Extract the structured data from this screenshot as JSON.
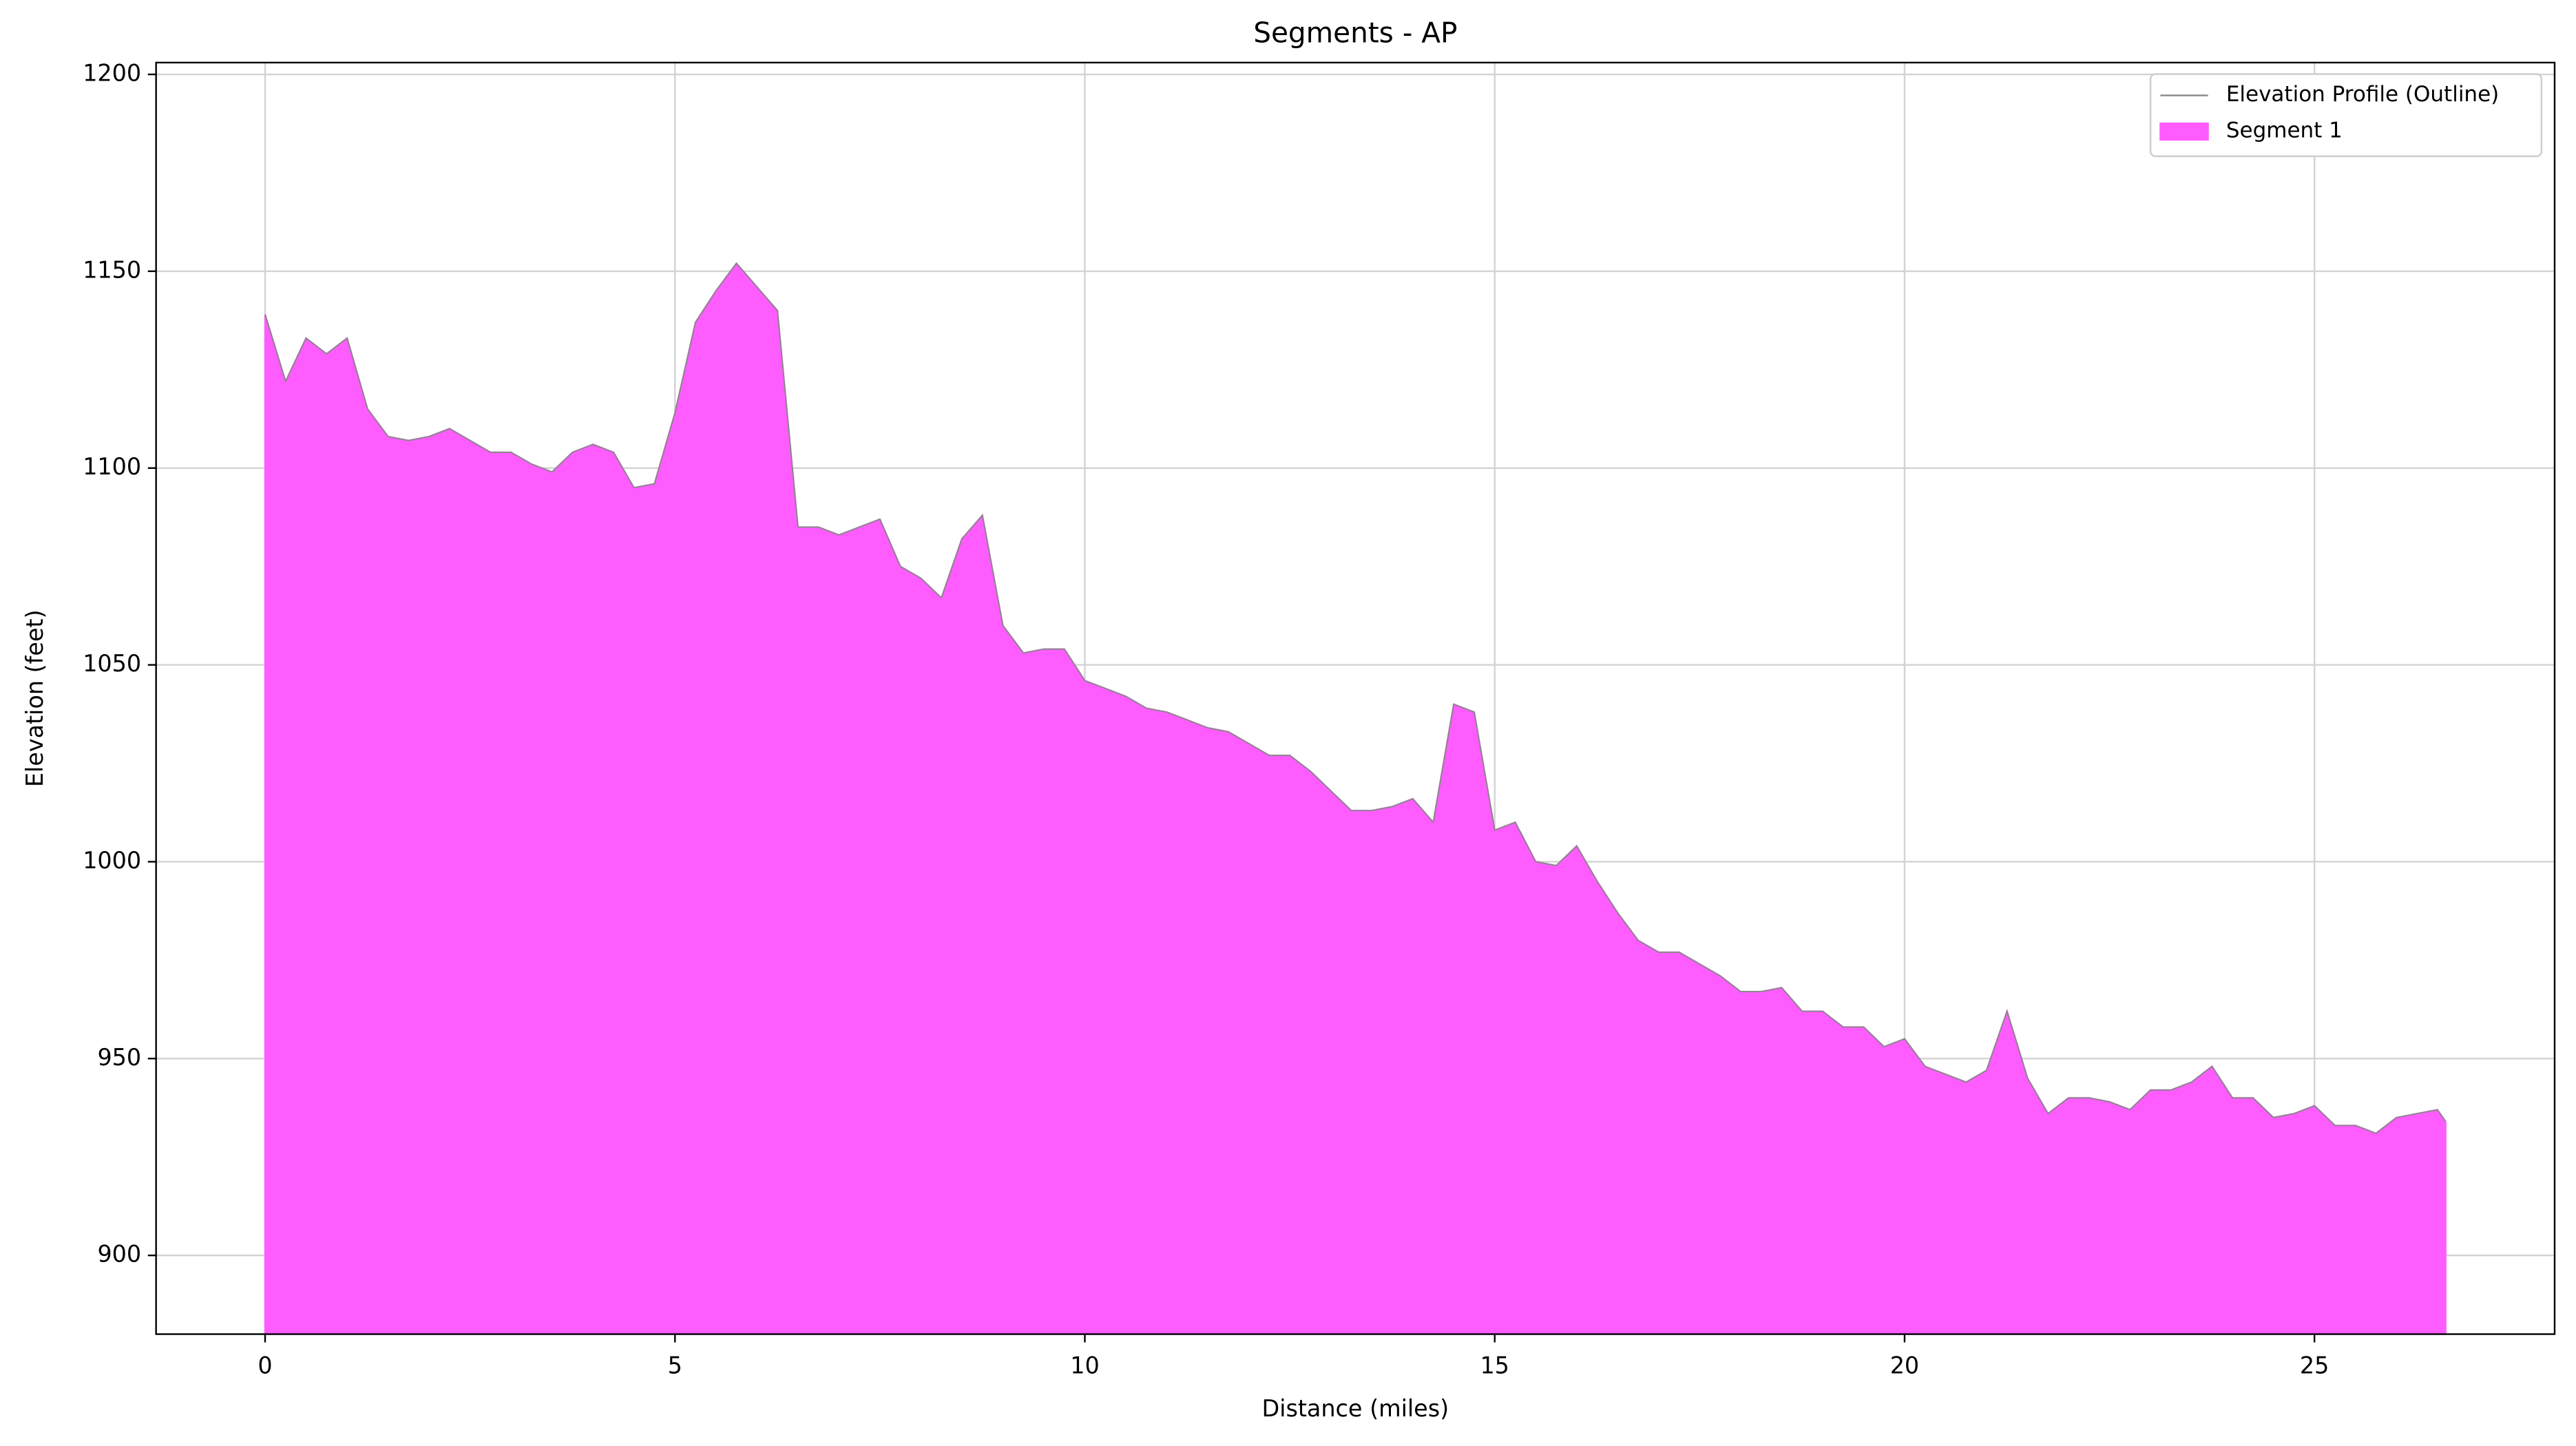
{
  "chart_data": {
    "type": "area",
    "title": "Segments - AP",
    "xlabel": "Distance (miles)",
    "ylabel": "Elevation (feet)",
    "x": [
      0,
      0.25,
      0.5,
      0.75,
      1,
      1.25,
      1.5,
      1.75,
      2,
      2.25,
      2.5,
      2.75,
      3,
      3.25,
      3.5,
      3.75,
      4,
      4.25,
      4.5,
      4.75,
      5,
      5.25,
      5.5,
      5.75,
      6,
      6.25,
      6.5,
      6.75,
      7,
      7.25,
      7.5,
      7.75,
      8,
      8.25,
      8.5,
      8.75,
      9,
      9.25,
      9.5,
      9.75,
      10,
      10.25,
      10.5,
      10.75,
      11,
      11.25,
      11.5,
      11.75,
      12,
      12.25,
      12.5,
      12.75,
      13,
      13.25,
      13.5,
      13.75,
      14,
      14.25,
      14.5,
      14.75,
      15,
      15.25,
      15.5,
      15.75,
      16,
      16.25,
      16.5,
      16.75,
      17,
      17.25,
      17.5,
      17.75,
      18,
      18.25,
      18.5,
      18.75,
      19,
      19.25,
      19.5,
      19.75,
      20,
      20.25,
      20.5,
      20.75,
      21,
      21.25,
      21.5,
      21.75,
      22,
      22.25,
      22.5,
      22.75,
      23,
      23.25,
      23.5,
      23.75,
      24,
      24.25,
      24.5,
      24.75,
      25,
      25.25,
      25.5,
      25.75,
      26,
      26.25,
      26.5,
      26.6
    ],
    "series": [
      {
        "name": "Elevation Profile (Outline)",
        "color": "#888888",
        "kind": "line",
        "values": [
          1139,
          1122,
          1133,
          1129,
          1133,
          1115,
          1108,
          1107,
          1108,
          1110,
          1107,
          1104,
          1104,
          1101,
          1099,
          1104,
          1106,
          1104,
          1095,
          1096,
          1114,
          1137,
          1145,
          1152,
          1146,
          1140,
          1085,
          1085,
          1083,
          1085,
          1087,
          1075,
          1072,
          1067,
          1082,
          1088,
          1060,
          1053,
          1054,
          1054,
          1046,
          1044,
          1042,
          1039,
          1038,
          1036,
          1034,
          1033,
          1030,
          1027,
          1027,
          1023,
          1018,
          1013,
          1013,
          1014,
          1016,
          1010,
          1040,
          1038,
          1008,
          1010,
          1000,
          999,
          1004,
          995,
          987,
          980,
          977,
          977,
          974,
          971,
          967,
          967,
          968,
          962,
          962,
          958,
          958,
          953,
          955,
          948,
          946,
          944,
          947,
          962,
          945,
          936,
          940,
          940,
          939,
          937,
          942,
          942,
          944,
          948,
          940,
          940,
          935,
          936,
          938,
          933,
          933,
          931,
          935,
          936,
          937,
          934
        ]
      },
      {
        "name": "Segment 1",
        "color": "#ff5cff",
        "kind": "fill",
        "values": [
          1139,
          1122,
          1133,
          1129,
          1133,
          1115,
          1108,
          1107,
          1108,
          1110,
          1107,
          1104,
          1104,
          1101,
          1099,
          1104,
          1106,
          1104,
          1095,
          1096,
          1114,
          1137,
          1145,
          1152,
          1146,
          1140,
          1085,
          1085,
          1083,
          1085,
          1087,
          1075,
          1072,
          1067,
          1082,
          1088,
          1060,
          1053,
          1054,
          1054,
          1046,
          1044,
          1042,
          1039,
          1038,
          1036,
          1034,
          1033,
          1030,
          1027,
          1027,
          1023,
          1018,
          1013,
          1013,
          1014,
          1016,
          1010,
          1040,
          1038,
          1008,
          1010,
          1000,
          999,
          1004,
          995,
          987,
          980,
          977,
          977,
          974,
          971,
          967,
          967,
          968,
          962,
          962,
          958,
          958,
          953,
          955,
          948,
          946,
          944,
          947,
          962,
          945,
          936,
          940,
          940,
          939,
          937,
          942,
          942,
          944,
          948,
          940,
          940,
          935,
          936,
          938,
          933,
          933,
          931,
          935,
          936,
          937,
          934
        ]
      }
    ],
    "xlim": [
      -1.33,
      27.93
    ],
    "xticks": [
      0,
      5,
      10,
      15,
      20,
      25
    ],
    "ylim": [
      880,
      1203
    ],
    "yticks": [
      900,
      950,
      1000,
      1050,
      1100,
      1150,
      1200
    ],
    "grid": true,
    "legend": "upper right"
  }
}
